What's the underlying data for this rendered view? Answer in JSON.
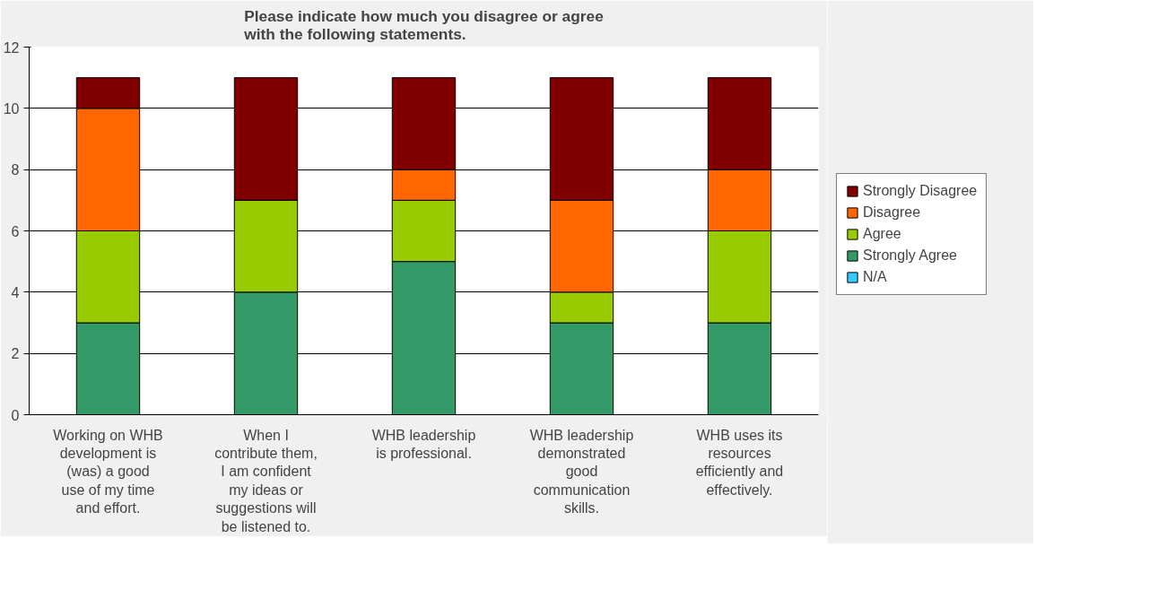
{
  "chart_data": {
    "type": "bar",
    "title": "Please indicate how much you disagree or agree\nwith the following statements.",
    "categories": [
      "Working on WHB\ndevelopment is\n(was) a good\nuse of my time\nand effort.",
      "When I\ncontribute them,\nI am confident\nmy ideas or\nsuggestions will\nbe listened to.",
      "WHB leadership\nis professional.",
      "WHB leadership\ndemonstrated\ngood\ncommunication\nskills.",
      "WHB uses its\nresources\nefficiently and\neffectively."
    ],
    "stacked": true,
    "series": [
      {
        "name": "N/A",
        "color": "#33ccff",
        "values": [
          0,
          0,
          0,
          0,
          0
        ]
      },
      {
        "name": "Strongly Agree",
        "color": "#339966",
        "values": [
          3,
          4,
          5,
          3,
          3
        ]
      },
      {
        "name": "Agree",
        "color": "#99cc00",
        "values": [
          3,
          3,
          2,
          1,
          3
        ]
      },
      {
        "name": "Disagree",
        "color": "#ff6600",
        "values": [
          4,
          0,
          1,
          3,
          2
        ]
      },
      {
        "name": "Strongly Disagree",
        "color": "#800000",
        "values": [
          1,
          4,
          3,
          4,
          3
        ]
      }
    ],
    "ylim": [
      0,
      12
    ],
    "yticks": [
      0,
      2,
      4,
      6,
      8,
      10,
      12
    ],
    "grid": "y",
    "legend": "right"
  }
}
